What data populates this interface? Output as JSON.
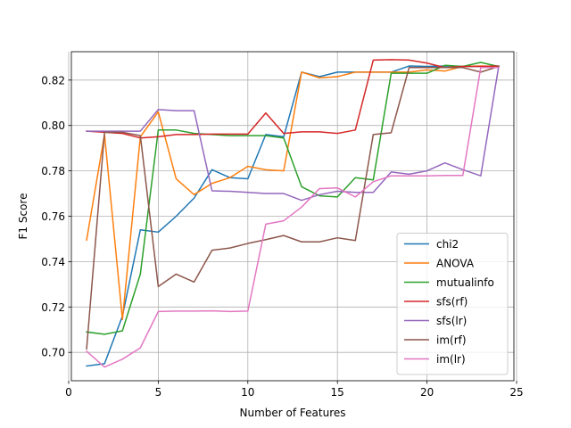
{
  "chart_data": {
    "type": "line",
    "title": "",
    "xlabel": "Number of Features",
    "ylabel": "F1 Score",
    "xlim": [
      0.15,
      24.85
    ],
    "ylim": [
      0.6875,
      0.8325
    ],
    "xticks": [
      0,
      5,
      10,
      15,
      20,
      25
    ],
    "yticks": [
      0.7,
      0.72,
      0.74,
      0.76,
      0.78,
      0.8,
      0.82
    ],
    "grid": true,
    "legend_position": "lower-right",
    "x": [
      1,
      2,
      3,
      4,
      5,
      6,
      7,
      8,
      9,
      10,
      11,
      12,
      13,
      14,
      15,
      16,
      17,
      18,
      19,
      20,
      21,
      22,
      23,
      24
    ],
    "series": [
      {
        "name": "chi2",
        "color": "#1f77b4",
        "values": [
          0.694,
          0.695,
          0.716,
          0.754,
          0.753,
          0.76,
          0.768,
          0.7805,
          0.777,
          0.7765,
          0.796,
          0.795,
          0.8235,
          0.8215,
          0.8235,
          0.8235,
          0.8235,
          0.8235,
          0.8262,
          0.826,
          0.8262,
          0.826,
          0.826,
          0.826
        ]
      },
      {
        "name": "ANOVA",
        "color": "#ff7f0e",
        "values": [
          0.7495,
          0.796,
          0.7145,
          0.795,
          0.806,
          0.7765,
          0.7695,
          0.7745,
          0.777,
          0.782,
          0.7805,
          0.78,
          0.8235,
          0.821,
          0.8215,
          0.8235,
          0.8235,
          0.8235,
          0.8235,
          0.8245,
          0.824,
          0.826,
          0.8262,
          0.826
        ]
      },
      {
        "name": "mutualinfo",
        "color": "#2ca02c",
        "values": [
          0.709,
          0.708,
          0.7095,
          0.7345,
          0.798,
          0.798,
          0.7965,
          0.796,
          0.7955,
          0.7955,
          0.7955,
          0.7945,
          0.773,
          0.769,
          0.7685,
          0.777,
          0.776,
          0.823,
          0.823,
          0.823,
          0.8265,
          0.826,
          0.8278,
          0.826
        ]
      },
      {
        "name": "sfs(rf)",
        "color": "#d62728",
        "values": [
          0.7975,
          0.797,
          0.7965,
          0.7945,
          0.795,
          0.796,
          0.796,
          0.7962,
          0.7962,
          0.7962,
          0.8055,
          0.7965,
          0.7972,
          0.7972,
          0.7965,
          0.798,
          0.8288,
          0.829,
          0.8288,
          0.8275,
          0.8255,
          0.826,
          0.826,
          0.8262
        ]
      },
      {
        "name": "sfs(lr)",
        "color": "#9467bd",
        "values": [
          0.7975,
          0.7975,
          0.7975,
          0.7975,
          0.807,
          0.8065,
          0.8065,
          0.7712,
          0.771,
          0.7705,
          0.77,
          0.77,
          0.767,
          0.7695,
          0.771,
          0.7705,
          0.7705,
          0.7795,
          0.7785,
          0.78,
          0.7835,
          0.7805,
          0.7778,
          0.826
        ]
      },
      {
        "name": "im(rf)",
        "color": "#8c564b",
        "values": [
          0.7015,
          0.797,
          0.797,
          0.7955,
          0.729,
          0.7345,
          0.731,
          0.745,
          0.746,
          0.748,
          0.7497,
          0.7515,
          0.7487,
          0.7487,
          0.7505,
          0.7493,
          0.796,
          0.7968,
          0.8255,
          0.8255,
          0.8255,
          0.8255,
          0.8235,
          0.826
        ]
      },
      {
        "name": "im(lr)",
        "color": "#e377c2",
        "values": [
          0.7005,
          0.6935,
          0.697,
          0.702,
          0.718,
          0.7182,
          0.7182,
          0.7183,
          0.718,
          0.7182,
          0.7565,
          0.758,
          0.764,
          0.7722,
          0.7725,
          0.7685,
          0.7752,
          0.7778,
          0.7778,
          0.7778,
          0.778,
          0.778,
          0.8255,
          0.8255
        ]
      }
    ]
  }
}
